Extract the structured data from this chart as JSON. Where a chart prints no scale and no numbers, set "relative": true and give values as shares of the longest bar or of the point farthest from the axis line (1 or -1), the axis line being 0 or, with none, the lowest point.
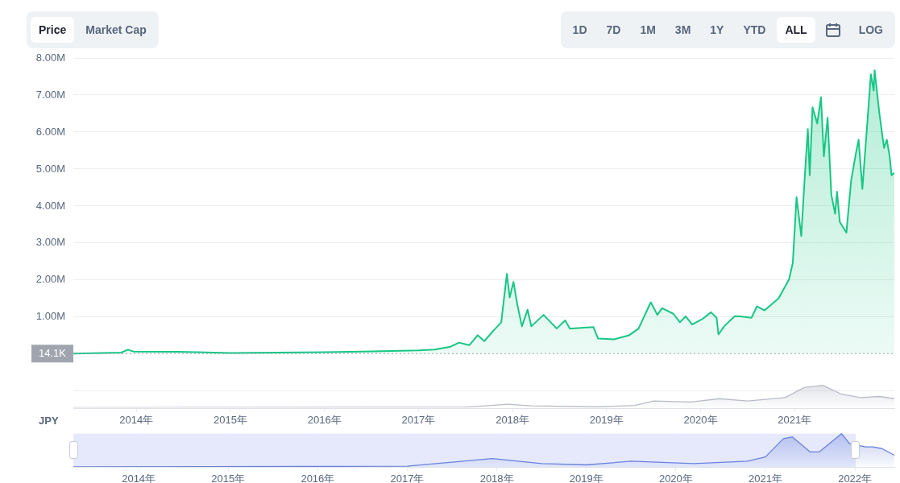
{
  "chart_data": [
    {
      "type": "area",
      "ylabel": "JPY",
      "annotations": [
        "Price",
        "Market Cap",
        "1D",
        "7D",
        "1M",
        "3M",
        "1Y",
        "YTD",
        "ALL",
        "LOG"
      ],
      "x": [
        2013.33,
        2013.84,
        2013.91,
        2013.97,
        2014.44,
        2015.0,
        2016.0,
        2016.4,
        2017.0,
        2017.17,
        2017.34,
        2017.43,
        2017.54,
        2017.63,
        2017.7,
        2017.8,
        2017.88,
        2017.94,
        2017.97,
        2018.01,
        2018.05,
        2018.1,
        2018.16,
        2018.2,
        2018.33,
        2018.47,
        2018.56,
        2018.61,
        2018.86,
        2018.91,
        2019.08,
        2019.24,
        2019.34,
        2019.47,
        2019.54,
        2019.59,
        2019.71,
        2019.78,
        2019.84,
        2019.91,
        2020.02,
        2020.11,
        2020.17,
        2020.19,
        2020.25,
        2020.36,
        2020.42,
        2020.54,
        2020.6,
        2020.68,
        2020.83,
        2020.94,
        2020.98,
        2021.02,
        2021.07,
        2021.11,
        2021.14,
        2021.16,
        2021.19,
        2021.24,
        2021.28,
        2021.31,
        2021.35,
        2021.39,
        2021.43,
        2021.45,
        2021.48,
        2021.55,
        2021.6,
        2021.65,
        2021.68,
        2021.72,
        2021.77,
        2021.81,
        2021.84,
        2021.85,
        2021.9,
        2021.95,
        2021.98,
        2022.01,
        2022.03,
        2022.06
      ],
      "series": [
        {
          "color": "#16c784",
          "values": [
            14100,
            40000,
            120000,
            70000,
            65000,
            30000,
            50000,
            70000,
            100000,
            120000,
            200000,
            310000,
            240000,
            510000,
            350000,
            640000,
            860000,
            2170000,
            1530000,
            1950000,
            1350000,
            750000,
            1200000,
            750000,
            1060000,
            690000,
            910000,
            690000,
            730000,
            420000,
            400000,
            510000,
            690000,
            1400000,
            1060000,
            1240000,
            1090000,
            860000,
            1020000,
            800000,
            950000,
            1130000,
            980000,
            530000,
            750000,
            1020000,
            1020000,
            980000,
            1290000,
            1180000,
            1510000,
            2020000,
            2460000,
            4240000,
            3190000,
            4900000,
            6080000,
            4830000,
            6670000,
            6230000,
            6940000,
            5340000,
            6390000,
            4300000,
            3790000,
            4390000,
            3570000,
            3280000,
            4680000,
            5410000,
            5790000,
            4460000,
            6160000,
            7560000,
            7120000,
            7670000,
            6520000,
            5570000,
            5790000,
            5340000,
            4830000,
            4900000
          ]
        }
      ],
      "xlim": [
        2013.33,
        2022.06
      ],
      "xticks": [
        {
          "value": 2014,
          "label": "2014年"
        },
        {
          "value": 2015,
          "label": "2015年"
        },
        {
          "value": 2016,
          "label": "2016年"
        },
        {
          "value": 2017,
          "label": "2017年"
        },
        {
          "value": 2018,
          "label": "2018年"
        },
        {
          "value": 2019,
          "label": "2019年"
        },
        {
          "value": 2020,
          "label": "2020年"
        },
        {
          "value": 2021,
          "label": "2021年"
        }
      ],
      "ylim": [
        -1460000,
        8000000
      ],
      "yticks": [
        {
          "value": -1000000,
          "label": null
        },
        {
          "value": 1000000,
          "label": "1.00M"
        },
        {
          "value": 2000000,
          "label": "2.00M"
        },
        {
          "value": 3000000,
          "label": "3.00M"
        },
        {
          "value": 4000000,
          "label": "4.00M"
        },
        {
          "value": 5000000,
          "label": "5.00M"
        },
        {
          "value": 6000000,
          "label": "6.00M"
        },
        {
          "value": 7000000,
          "label": "7.00M"
        },
        {
          "value": 8000000,
          "label": "8.00M"
        }
      ],
      "ref_lines": [
        {
          "axis": "y",
          "value": 14100,
          "label": "14.1K",
          "color": "#a0a4ae",
          "line_style": "dotted"
        }
      ],
      "grid": "y",
      "marker": "none"
    },
    {
      "type": "area",
      "relative": true,
      "tick_labels": false,
      "marker": "none",
      "x": [
        2013.33,
        2017.5,
        2017.95,
        2018.2,
        2018.9,
        2019.3,
        2019.5,
        2019.9,
        2020.2,
        2020.5,
        2020.9,
        2021.1,
        2021.3,
        2021.5,
        2021.7,
        2021.9,
        2022.06
      ],
      "series": [
        {
          "color": "#b8bcc8",
          "values": [
            0,
            0.02,
            0.15,
            0.08,
            0.03,
            0.1,
            0.3,
            0.25,
            0.4,
            0.3,
            0.45,
            0.9,
            1,
            0.6,
            0.45,
            0.5,
            0.4
          ]
        }
      ],
      "xlim": [
        2013.33,
        2022.06
      ]
    },
    {
      "type": "area",
      "relative": true,
      "tick_labels": "x",
      "marker": "none",
      "grid": "x",
      "x": [
        2013.27,
        2017.0,
        2017.95,
        2018.5,
        2019.0,
        2019.5,
        2020.2,
        2020.8,
        2021.0,
        2021.2,
        2021.3,
        2021.5,
        2021.6,
        2021.85,
        2021.94,
        2022.12,
        2022.2,
        2022.3,
        2022.44
      ],
      "series": [
        {
          "color": "#6882dc",
          "values": [
            0,
            0.02,
            0.25,
            0.1,
            0.06,
            0.17,
            0.1,
            0.17,
            0.3,
            0.85,
            0.9,
            0.45,
            0.45,
            1,
            0.7,
            0.6,
            0.6,
            0.55,
            0.35
          ]
        }
      ],
      "xlim": [
        2013.27,
        2022.44
      ],
      "xticks": [
        {
          "value": 2014,
          "label": "2014年"
        },
        {
          "value": 2015,
          "label": "2015年"
        },
        {
          "value": 2016,
          "label": "2016年"
        },
        {
          "value": 2017,
          "label": "2017年"
        },
        {
          "value": 2018,
          "label": "2018年"
        },
        {
          "value": 2019,
          "label": "2019年"
        },
        {
          "value": 2020,
          "label": "2020年"
        },
        {
          "value": 2021,
          "label": "2021年"
        },
        {
          "value": 2022,
          "label": "2022年"
        }
      ],
      "bands": [
        {
          "axis": "x",
          "from": 2013.27,
          "to": 2022.0,
          "color": "#e6e9fc"
        }
      ]
    }
  ]
}
